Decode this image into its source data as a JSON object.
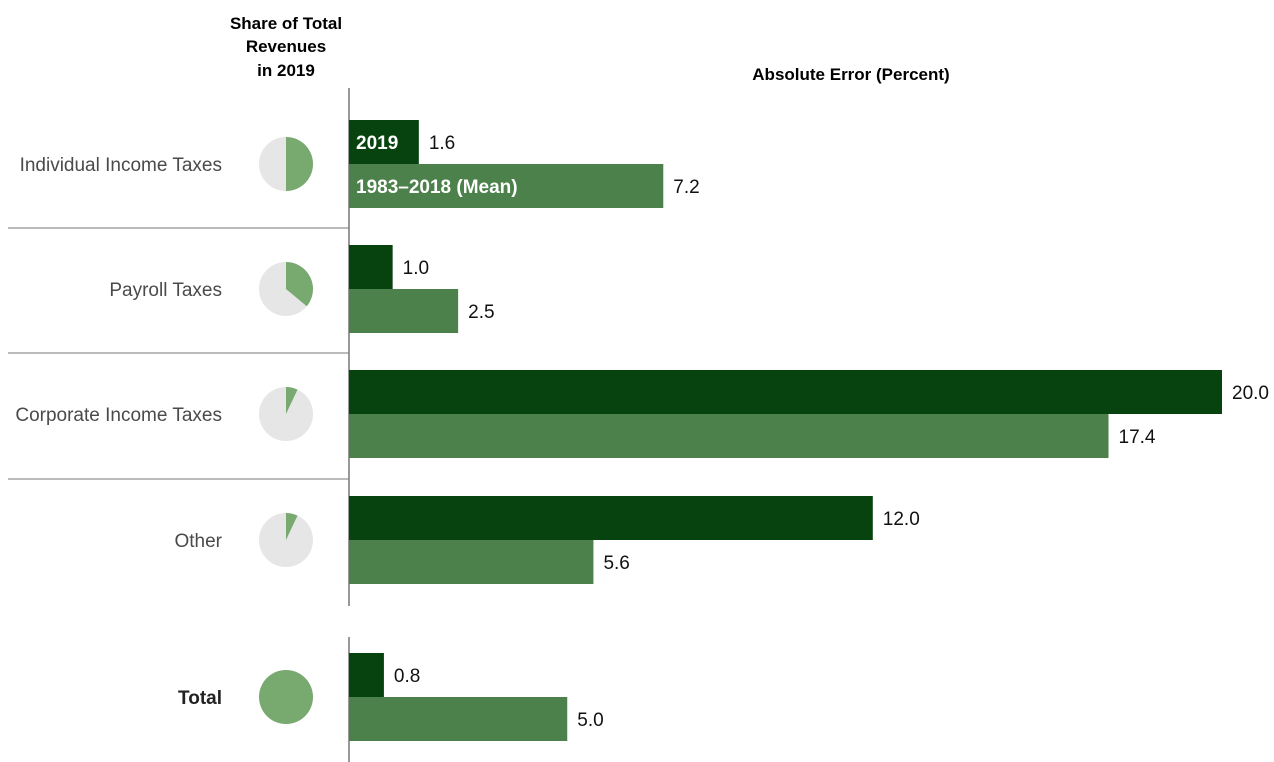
{
  "chart_data": {
    "type": "bar",
    "orientation": "horizontal",
    "title": "Absolute Error (Percent)",
    "share_header": [
      "Share of Total",
      "Revenues",
      "in 2019"
    ],
    "categories": [
      "Individual Income Taxes",
      "Payroll Taxes",
      "Corporate Income Taxes",
      "Other",
      "Total"
    ],
    "share_of_total_revenues_2019": [
      0.5,
      0.36,
      0.07,
      0.07,
      1.0
    ],
    "series": [
      {
        "name": "2019",
        "values": [
          1.6,
          1.0,
          20.0,
          12.0,
          0.8
        ],
        "labels": [
          "1.6",
          "1.0",
          "20.0",
          "12.0",
          "0.8"
        ]
      },
      {
        "name": "1983–2018 (Mean)",
        "values": [
          7.2,
          2.5,
          17.4,
          5.6,
          5.0
        ],
        "labels": [
          "7.2",
          "2.5",
          "17.4",
          "5.6",
          "5.0"
        ]
      }
    ],
    "xlim": [
      0,
      20
    ],
    "grid": false,
    "legend": "in-bar labels on first category",
    "colors": {
      "series_2019": "#07430f",
      "series_mean": "#4c814b",
      "pie_share": "#78a96f",
      "pie_rest": "#e6e6e6",
      "axis": "#555555",
      "separator": "#777777"
    }
  }
}
